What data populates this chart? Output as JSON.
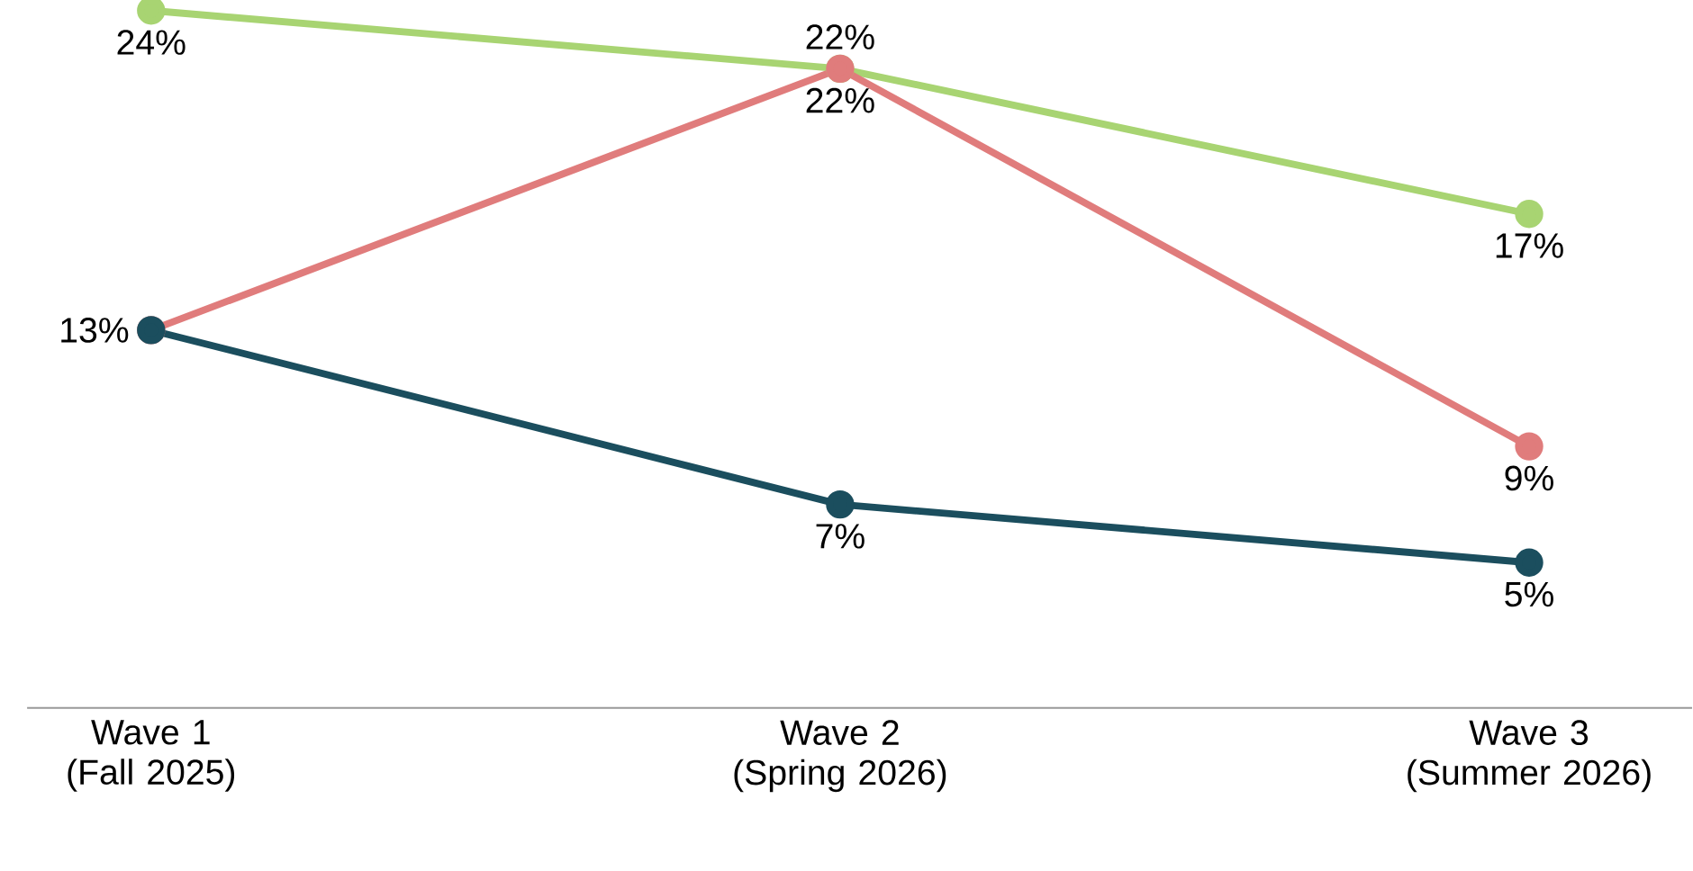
{
  "chart_data": {
    "type": "line",
    "categories": [
      "Wave 1 (Fall 2025)",
      "Wave 2 (Spring 2026)",
      "Wave 3 (Summer 2026)"
    ],
    "marker": "circle",
    "line_style": "solid",
    "grid": false,
    "tick_labels": "x",
    "series": [
      {
        "color": "#a8d472",
        "values": [
          24,
          22,
          17
        ],
        "value_labels": [
          "24%",
          "22%",
          "17%"
        ]
      },
      {
        "color": "#e07c7c",
        "values": [
          13,
          22,
          9
        ],
        "value_labels": [
          null,
          "22%",
          "9%"
        ]
      },
      {
        "color": "#1b4e5e",
        "values": [
          13,
          7,
          5
        ],
        "value_labels": [
          "13%",
          "7%",
          "5%"
        ]
      }
    ]
  }
}
